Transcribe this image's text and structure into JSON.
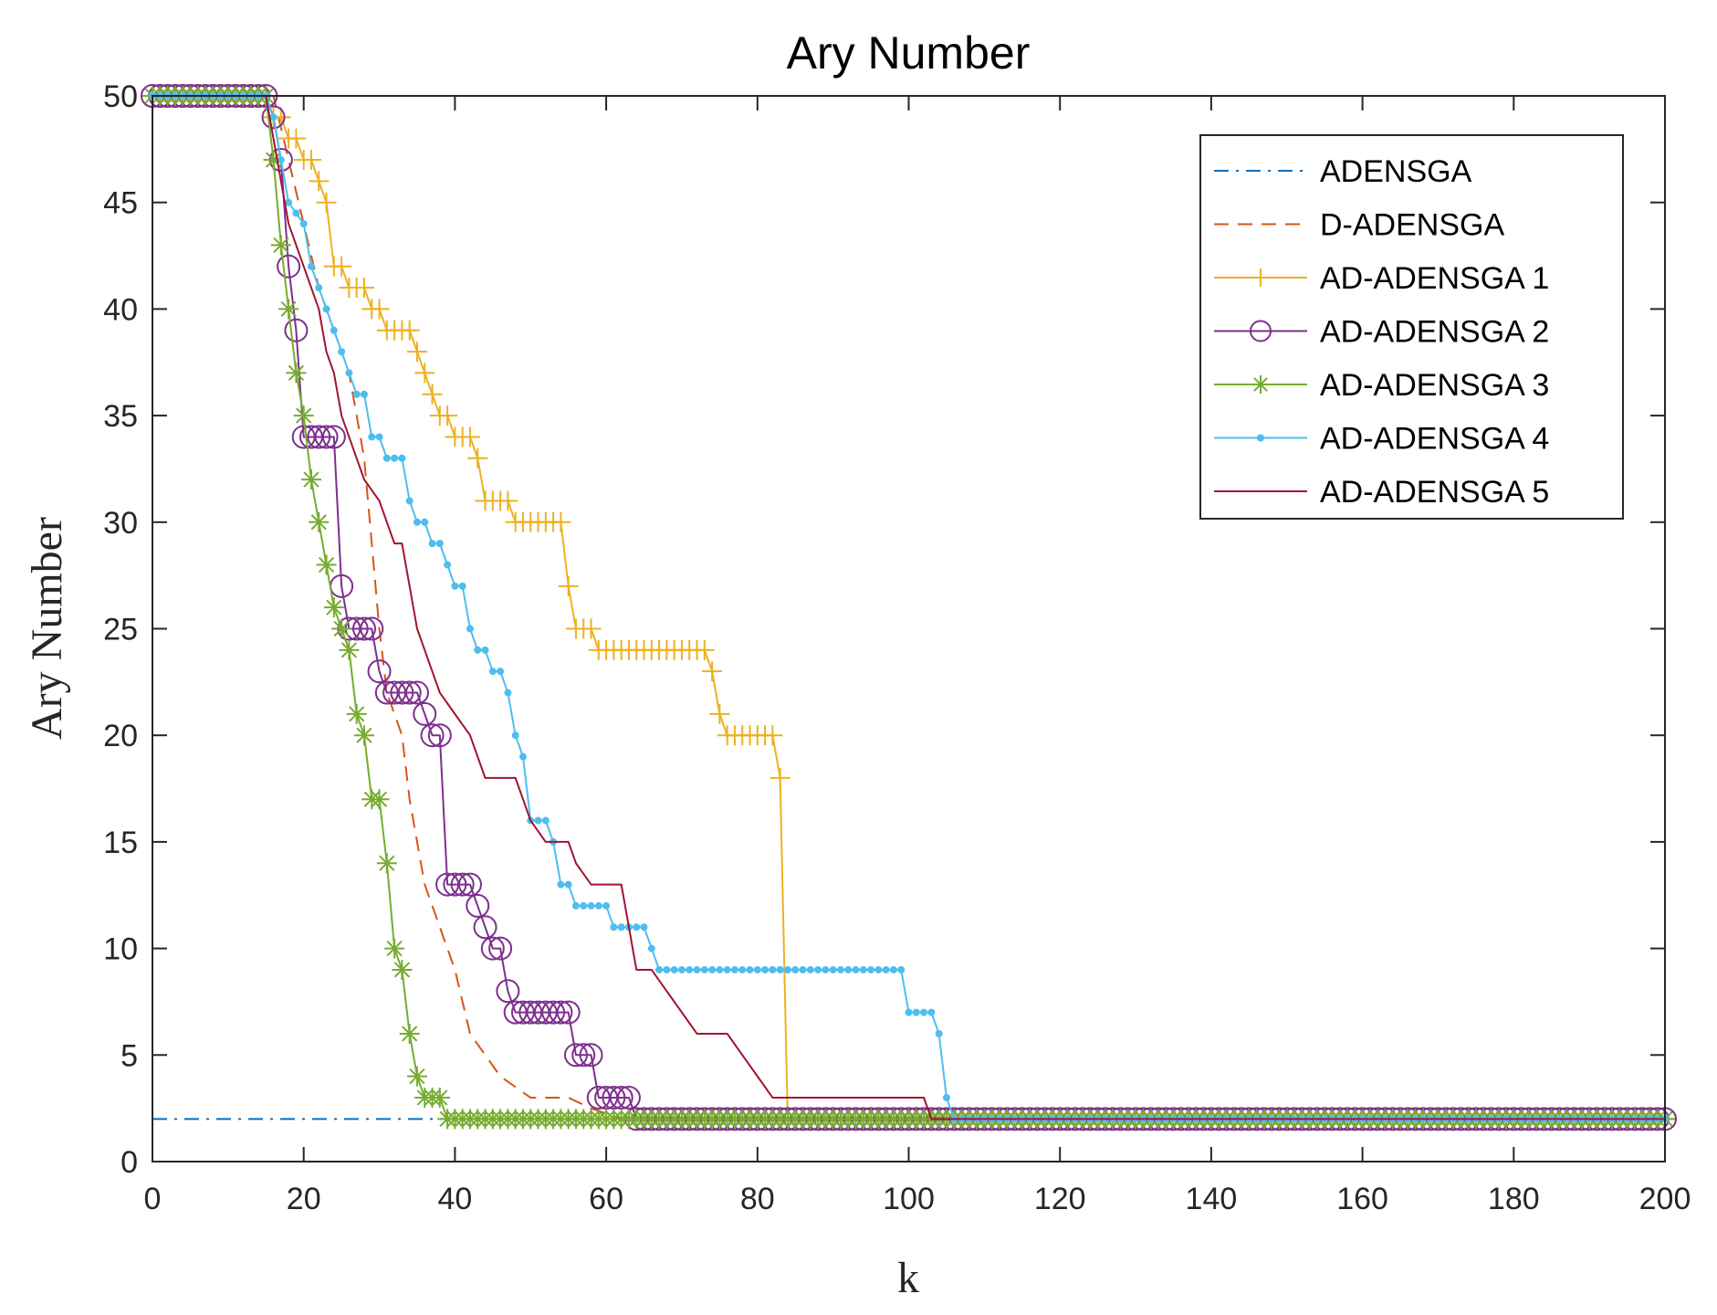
{
  "chart_data": {
    "type": "line",
    "title": "Ary Number",
    "xlabel": "k",
    "ylabel": "Ary Number",
    "xlim": [
      0,
      200
    ],
    "ylim": [
      0,
      50
    ],
    "xticks": [
      0,
      20,
      40,
      60,
      80,
      100,
      120,
      140,
      160,
      180,
      200
    ],
    "yticks": [
      0,
      5,
      10,
      15,
      20,
      25,
      30,
      35,
      40,
      45,
      50
    ],
    "grid": false,
    "legend_position": "top-right",
    "series": [
      {
        "name": "ADENSGA",
        "color": "#0072bd",
        "dash": "dashdot",
        "marker": "none",
        "points": [
          [
            0,
            2
          ],
          [
            200,
            2
          ]
        ]
      },
      {
        "name": "D-ADENSGA",
        "color": "#d95319",
        "dash": "dashed",
        "marker": "none",
        "points": [
          [
            0,
            50
          ],
          [
            16,
            50
          ],
          [
            18,
            47
          ],
          [
            20,
            44
          ],
          [
            22,
            41
          ],
          [
            24,
            39
          ],
          [
            26,
            37
          ],
          [
            28,
            33
          ],
          [
            29,
            29
          ],
          [
            30,
            25
          ],
          [
            31,
            22
          ],
          [
            33,
            20
          ],
          [
            34,
            17
          ],
          [
            35,
            15
          ],
          [
            36,
            13
          ],
          [
            38,
            11
          ],
          [
            40,
            9
          ],
          [
            42,
            6
          ],
          [
            44,
            5
          ],
          [
            46,
            4
          ],
          [
            48,
            3.5
          ],
          [
            50,
            3
          ],
          [
            55,
            3
          ],
          [
            58,
            2.5
          ],
          [
            62,
            2
          ],
          [
            80,
            2
          ],
          [
            105,
            2
          ],
          [
            200,
            2
          ]
        ]
      },
      {
        "name": "AD-ADENSGA 1",
        "color": "#edb120",
        "dash": "solid",
        "marker": "plus",
        "points": [
          [
            0,
            50
          ],
          [
            15,
            50
          ],
          [
            16,
            49
          ],
          [
            17,
            49
          ],
          [
            18,
            48
          ],
          [
            19,
            48
          ],
          [
            20,
            47
          ],
          [
            21,
            47
          ],
          [
            22,
            46
          ],
          [
            23,
            45
          ],
          [
            24,
            42
          ],
          [
            25,
            42
          ],
          [
            26,
            41
          ],
          [
            27,
            41
          ],
          [
            28,
            41
          ],
          [
            29,
            40
          ],
          [
            30,
            40
          ],
          [
            31,
            39
          ],
          [
            32,
            39
          ],
          [
            33,
            39
          ],
          [
            34,
            39
          ],
          [
            35,
            38
          ],
          [
            36,
            37
          ],
          [
            37,
            36
          ],
          [
            38,
            35
          ],
          [
            39,
            35
          ],
          [
            40,
            34
          ],
          [
            41,
            34
          ],
          [
            42,
            34
          ],
          [
            43,
            33
          ],
          [
            44,
            31
          ],
          [
            45,
            31
          ],
          [
            46,
            31
          ],
          [
            47,
            31
          ],
          [
            48,
            30
          ],
          [
            49,
            30
          ],
          [
            50,
            30
          ],
          [
            51,
            30
          ],
          [
            52,
            30
          ],
          [
            53,
            30
          ],
          [
            54,
            30
          ],
          [
            55,
            27
          ],
          [
            56,
            25
          ],
          [
            57,
            25
          ],
          [
            58,
            25
          ],
          [
            59,
            24
          ],
          [
            60,
            24
          ],
          [
            61,
            24
          ],
          [
            62,
            24
          ],
          [
            63,
            24
          ],
          [
            64,
            24
          ],
          [
            65,
            24
          ],
          [
            66,
            24
          ],
          [
            67,
            24
          ],
          [
            68,
            24
          ],
          [
            69,
            24
          ],
          [
            70,
            24
          ],
          [
            71,
            24
          ],
          [
            72,
            24
          ],
          [
            73,
            24
          ],
          [
            74,
            23
          ],
          [
            75,
            21
          ],
          [
            76,
            20
          ],
          [
            77,
            20
          ],
          [
            78,
            20
          ],
          [
            79,
            20
          ],
          [
            80,
            20
          ],
          [
            81,
            20
          ],
          [
            82,
            20
          ],
          [
            83,
            18
          ],
          [
            84,
            2
          ],
          [
            200,
            2
          ]
        ]
      },
      {
        "name": "AD-ADENSGA 2",
        "color": "#7e2f8e",
        "dash": "solid",
        "marker": "circle",
        "points": [
          [
            0,
            50
          ],
          [
            15,
            50
          ],
          [
            16,
            49
          ],
          [
            17,
            47
          ],
          [
            18,
            42
          ],
          [
            19,
            39
          ],
          [
            20,
            34
          ],
          [
            21,
            34
          ],
          [
            22,
            34
          ],
          [
            23,
            34
          ],
          [
            24,
            34
          ],
          [
            25,
            27
          ],
          [
            26,
            25
          ],
          [
            27,
            25
          ],
          [
            28,
            25
          ],
          [
            29,
            25
          ],
          [
            30,
            23
          ],
          [
            31,
            22
          ],
          [
            32,
            22
          ],
          [
            33,
            22
          ],
          [
            34,
            22
          ],
          [
            35,
            22
          ],
          [
            36,
            21
          ],
          [
            37,
            20
          ],
          [
            38,
            20
          ],
          [
            39,
            13
          ],
          [
            40,
            13
          ],
          [
            41,
            13
          ],
          [
            42,
            13
          ],
          [
            43,
            12
          ],
          [
            44,
            11
          ],
          [
            45,
            10
          ],
          [
            46,
            10
          ],
          [
            47,
            8
          ],
          [
            48,
            7
          ],
          [
            49,
            7
          ],
          [
            50,
            7
          ],
          [
            51,
            7
          ],
          [
            52,
            7
          ],
          [
            53,
            7
          ],
          [
            54,
            7
          ],
          [
            55,
            7
          ],
          [
            56,
            5
          ],
          [
            57,
            5
          ],
          [
            58,
            5
          ],
          [
            59,
            3
          ],
          [
            60,
            3
          ],
          [
            61,
            3
          ],
          [
            62,
            3
          ],
          [
            63,
            3
          ],
          [
            64,
            2
          ],
          [
            200,
            2
          ]
        ]
      },
      {
        "name": "AD-ADENSGA 3",
        "color": "#77ac30",
        "dash": "solid",
        "marker": "asterisk",
        "points": [
          [
            0,
            50
          ],
          [
            15,
            50
          ],
          [
            16,
            47
          ],
          [
            17,
            43
          ],
          [
            18,
            40
          ],
          [
            19,
            37
          ],
          [
            20,
            35
          ],
          [
            21,
            32
          ],
          [
            22,
            30
          ],
          [
            23,
            28
          ],
          [
            24,
            26
          ],
          [
            25,
            25
          ],
          [
            26,
            24
          ],
          [
            27,
            21
          ],
          [
            28,
            20
          ],
          [
            29,
            17
          ],
          [
            30,
            17
          ],
          [
            31,
            14
          ],
          [
            32,
            10
          ],
          [
            33,
            9
          ],
          [
            34,
            6
          ],
          [
            35,
            4
          ],
          [
            36,
            3
          ],
          [
            37,
            3
          ],
          [
            38,
            3
          ],
          [
            39,
            2
          ],
          [
            200,
            2
          ]
        ]
      },
      {
        "name": "AD-ADENSGA 4",
        "color": "#4dbeee",
        "dash": "solid",
        "marker": "point",
        "points": [
          [
            0,
            50
          ],
          [
            15,
            50
          ],
          [
            16,
            49
          ],
          [
            17,
            47
          ],
          [
            18,
            45
          ],
          [
            20,
            44
          ],
          [
            21,
            42
          ],
          [
            22,
            41
          ],
          [
            23,
            40
          ],
          [
            24,
            39
          ],
          [
            25,
            38
          ],
          [
            26,
            37
          ],
          [
            27,
            36
          ],
          [
            28,
            36
          ],
          [
            29,
            34
          ],
          [
            30,
            34
          ],
          [
            31,
            33
          ],
          [
            32,
            33
          ],
          [
            33,
            33
          ],
          [
            34,
            31
          ],
          [
            35,
            30
          ],
          [
            36,
            30
          ],
          [
            37,
            29
          ],
          [
            38,
            29
          ],
          [
            39,
            28
          ],
          [
            40,
            27
          ],
          [
            41,
            27
          ],
          [
            42,
            25
          ],
          [
            43,
            24
          ],
          [
            44,
            24
          ],
          [
            45,
            23
          ],
          [
            46,
            23
          ],
          [
            47,
            22
          ],
          [
            48,
            20
          ],
          [
            49,
            19
          ],
          [
            50,
            16
          ],
          [
            51,
            16
          ],
          [
            52,
            16
          ],
          [
            53,
            15
          ],
          [
            54,
            13
          ],
          [
            55,
            13
          ],
          [
            56,
            12
          ],
          [
            57,
            12
          ],
          [
            58,
            12
          ],
          [
            59,
            12
          ],
          [
            60,
            12
          ],
          [
            61,
            11
          ],
          [
            62,
            11
          ],
          [
            63,
            11
          ],
          [
            64,
            11
          ],
          [
            65,
            11
          ],
          [
            66,
            10
          ],
          [
            67,
            9
          ],
          [
            68,
            9
          ],
          [
            69,
            9
          ],
          [
            70,
            9
          ],
          [
            71,
            9
          ],
          [
            72,
            9
          ],
          [
            73,
            9
          ],
          [
            74,
            9
          ],
          [
            75,
            9
          ],
          [
            76,
            9
          ],
          [
            77,
            9
          ],
          [
            78,
            9
          ],
          [
            79,
            9
          ],
          [
            80,
            9
          ],
          [
            81,
            9
          ],
          [
            82,
            9
          ],
          [
            83,
            9
          ],
          [
            84,
            9
          ],
          [
            85,
            9
          ],
          [
            86,
            9
          ],
          [
            87,
            9
          ],
          [
            88,
            9
          ],
          [
            89,
            9
          ],
          [
            90,
            9
          ],
          [
            91,
            9
          ],
          [
            92,
            9
          ],
          [
            93,
            9
          ],
          [
            94,
            9
          ],
          [
            95,
            9
          ],
          [
            96,
            9
          ],
          [
            97,
            9
          ],
          [
            98,
            9
          ],
          [
            99,
            9
          ],
          [
            100,
            7
          ],
          [
            101,
            7
          ],
          [
            102,
            7
          ],
          [
            103,
            7
          ],
          [
            104,
            6
          ],
          [
            105,
            3
          ],
          [
            106,
            2
          ],
          [
            200,
            2
          ]
        ]
      },
      {
        "name": "AD-ADENSGA 5",
        "color": "#a2142f",
        "dash": "solid",
        "marker": "none",
        "points": [
          [
            0,
            50
          ],
          [
            15,
            50
          ],
          [
            16,
            48
          ],
          [
            17,
            46
          ],
          [
            18,
            44
          ],
          [
            20,
            42
          ],
          [
            22,
            40
          ],
          [
            23,
            38
          ],
          [
            24,
            37
          ],
          [
            25,
            35
          ],
          [
            26,
            34
          ],
          [
            28,
            32
          ],
          [
            30,
            31
          ],
          [
            31,
            30
          ],
          [
            32,
            29
          ],
          [
            33,
            29
          ],
          [
            34,
            27
          ],
          [
            35,
            25
          ],
          [
            36,
            24
          ],
          [
            37,
            23
          ],
          [
            38,
            22
          ],
          [
            40,
            21
          ],
          [
            42,
            20
          ],
          [
            43,
            19
          ],
          [
            44,
            18
          ],
          [
            48,
            18
          ],
          [
            49,
            17
          ],
          [
            50,
            16
          ],
          [
            52,
            15
          ],
          [
            55,
            15
          ],
          [
            56,
            14
          ],
          [
            58,
            13
          ],
          [
            62,
            13
          ],
          [
            63,
            11
          ],
          [
            64,
            9
          ],
          [
            66,
            9
          ],
          [
            68,
            8
          ],
          [
            70,
            7
          ],
          [
            72,
            6
          ],
          [
            76,
            6
          ],
          [
            78,
            5
          ],
          [
            80,
            4
          ],
          [
            82,
            3
          ],
          [
            88,
            3
          ],
          [
            90,
            3
          ],
          [
            102,
            3
          ],
          [
            103,
            2
          ],
          [
            104,
            2
          ],
          [
            200,
            2
          ]
        ]
      }
    ]
  }
}
